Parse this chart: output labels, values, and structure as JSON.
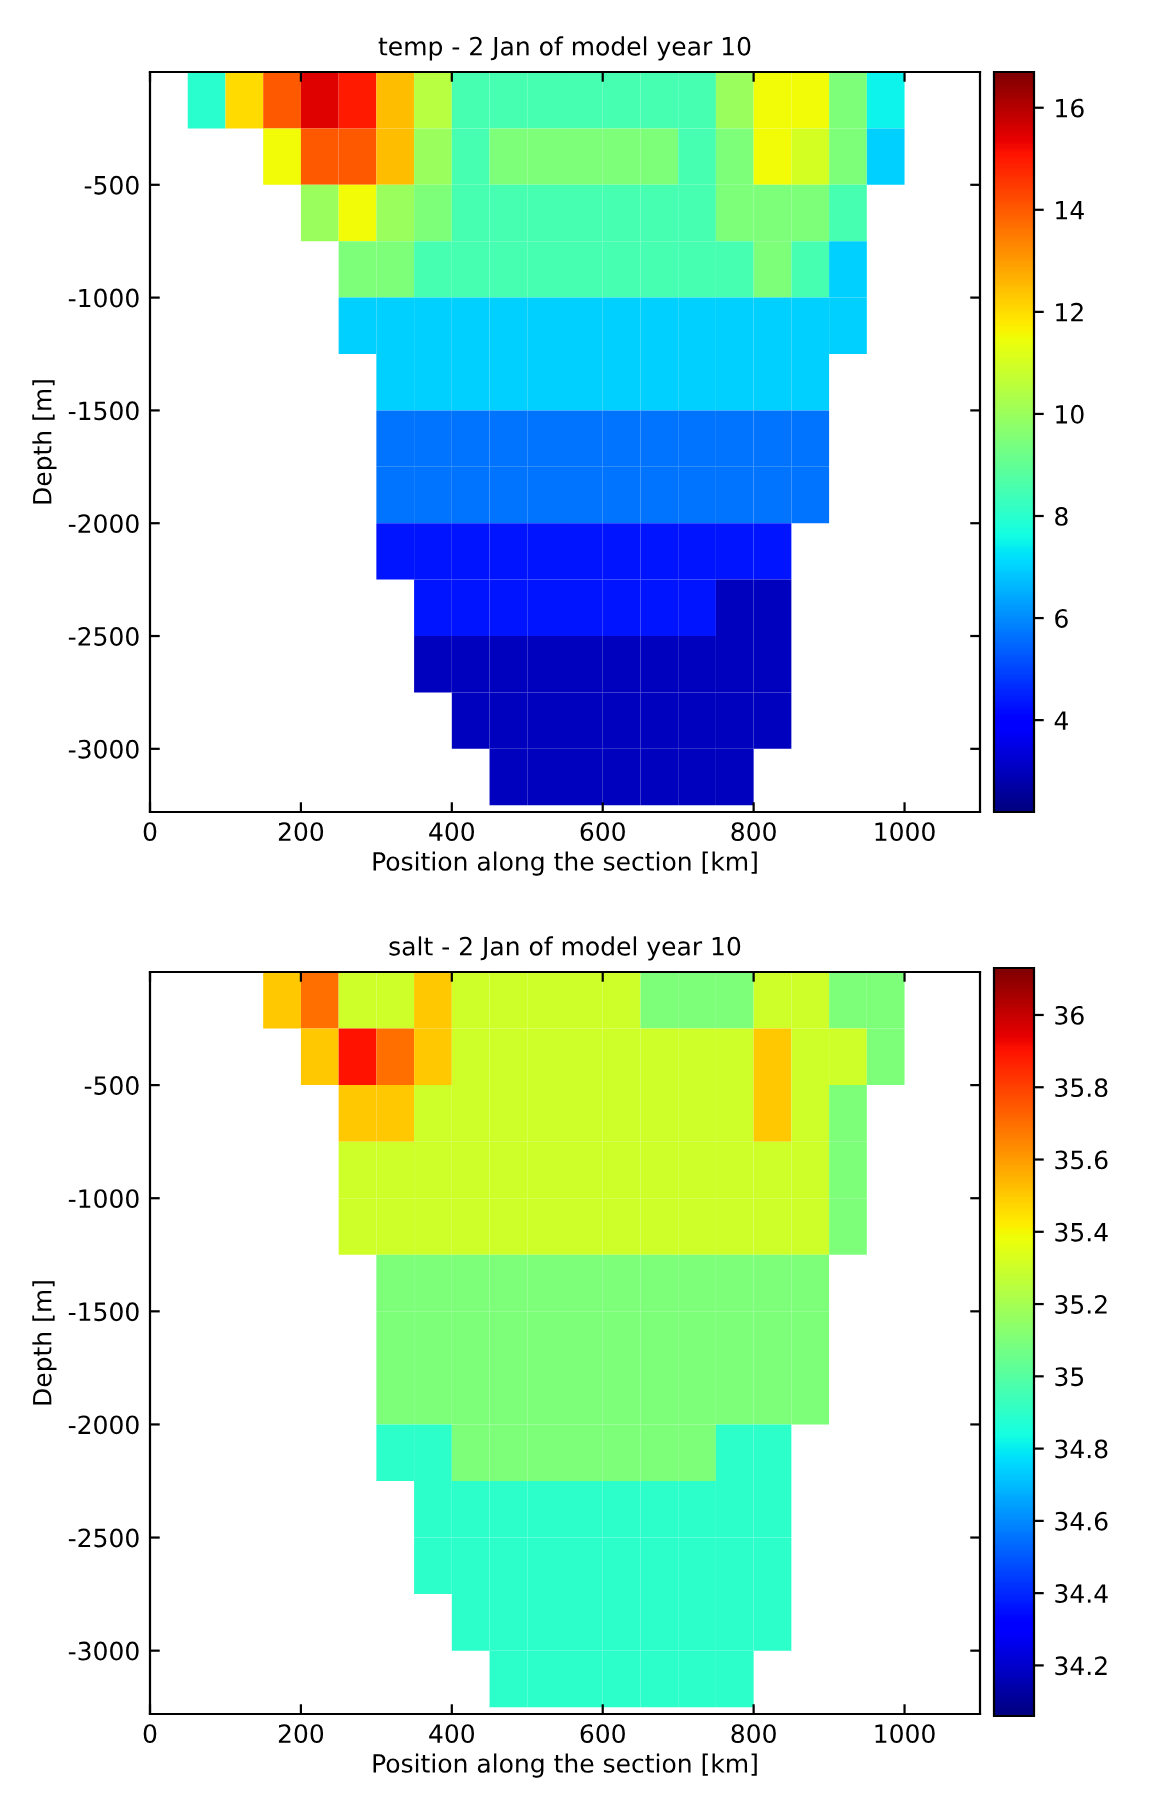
{
  "chart_data": [
    {
      "type": "heatmap",
      "title": "temp - 2 Jan of model year 10",
      "xlabel": "Position along the section [km]",
      "ylabel": "Depth [m]",
      "x": [
        25,
        75,
        125,
        175,
        225,
        275,
        325,
        375,
        425,
        475,
        525,
        575,
        625,
        675,
        725,
        775,
        825,
        875,
        925,
        975,
        1025,
        1075
      ],
      "y": [
        -125,
        -375,
        -625,
        -875,
        -1125,
        -1375,
        -1625,
        -1875,
        -2125,
        -2375,
        -2625,
        -2875,
        -3125
      ],
      "cells": [
        [
          null,
          8,
          12,
          14,
          15.5,
          15,
          12.5,
          10.5,
          8.5,
          8.5,
          8.5,
          8.5,
          8.5,
          8.5,
          8.5,
          10,
          11.5,
          11.5,
          9.5,
          7.5,
          null,
          null
        ],
        [
          null,
          null,
          null,
          11.5,
          14,
          14,
          12.5,
          10,
          8.5,
          9.5,
          9.5,
          9.5,
          9.5,
          9.5,
          8.5,
          9.5,
          11.5,
          11,
          9.5,
          7,
          null,
          null
        ],
        [
          null,
          null,
          null,
          null,
          10,
          11.5,
          10,
          9.5,
          8.5,
          8.5,
          8.5,
          8.5,
          8.5,
          8.5,
          8.5,
          9.5,
          9.5,
          9.5,
          8.5,
          null,
          null,
          null
        ],
        [
          null,
          null,
          null,
          null,
          null,
          9.5,
          9.5,
          8.5,
          8.5,
          8.5,
          8.5,
          8.5,
          8.5,
          8.5,
          8.5,
          8.5,
          9.5,
          8.5,
          7,
          null,
          null,
          null
        ],
        [
          null,
          null,
          null,
          null,
          null,
          7,
          7,
          7,
          7,
          7,
          7,
          7,
          7,
          7,
          7,
          7,
          7,
          7,
          7,
          null,
          null,
          null
        ],
        [
          null,
          null,
          null,
          null,
          null,
          null,
          7,
          7,
          7,
          7,
          7,
          7,
          7,
          7,
          7,
          7,
          7,
          7,
          null,
          null,
          null,
          null
        ],
        [
          null,
          null,
          null,
          null,
          null,
          null,
          5.7,
          5.7,
          5.7,
          5.7,
          5.7,
          5.7,
          5.7,
          5.7,
          5.7,
          5.7,
          5.7,
          5.7,
          null,
          null,
          null,
          null
        ],
        [
          null,
          null,
          null,
          null,
          null,
          null,
          5.7,
          5.7,
          5.7,
          5.7,
          5.7,
          5.7,
          5.7,
          5.7,
          5.7,
          5.7,
          5.7,
          5.7,
          null,
          null,
          null,
          null
        ],
        [
          null,
          null,
          null,
          null,
          null,
          null,
          4.3,
          4.3,
          4.3,
          4.3,
          4.3,
          4.3,
          4.3,
          4.3,
          4.3,
          4.3,
          4.3,
          null,
          null,
          null,
          null,
          null
        ],
        [
          null,
          null,
          null,
          null,
          null,
          null,
          null,
          4.3,
          4.3,
          4.3,
          4.3,
          4.3,
          4.3,
          4.3,
          4.3,
          3,
          3,
          null,
          null,
          null,
          null,
          null
        ],
        [
          null,
          null,
          null,
          null,
          null,
          null,
          null,
          3,
          3,
          3,
          3,
          3,
          3,
          3,
          3,
          3,
          3,
          null,
          null,
          null,
          null,
          null
        ],
        [
          null,
          null,
          null,
          null,
          null,
          null,
          null,
          null,
          3,
          3,
          3,
          3,
          3,
          3,
          3,
          3,
          3,
          null,
          null,
          null,
          null,
          null
        ],
        [
          null,
          null,
          null,
          null,
          null,
          null,
          null,
          null,
          null,
          3,
          3,
          3,
          3,
          3,
          3,
          3,
          null,
          null,
          null,
          null,
          null,
          null
        ]
      ],
      "clim": [
        2.2,
        16.7
      ],
      "cticks": [
        4,
        6,
        8,
        10,
        12,
        14,
        16
      ],
      "xlim": [
        0,
        1100
      ],
      "ylim": [
        -3280,
        0
      ],
      "xticks": [
        0,
        200,
        400,
        600,
        800,
        1000
      ],
      "yticks": [
        -3000,
        -2500,
        -2000,
        -1500,
        -1000,
        -500
      ]
    },
    {
      "type": "heatmap",
      "title": "salt - 2 Jan of model year 10",
      "xlabel": "Position along the section [km]",
      "ylabel": "Depth [m]",
      "x": [
        25,
        75,
        125,
        175,
        225,
        275,
        325,
        375,
        425,
        475,
        525,
        575,
        625,
        675,
        725,
        775,
        825,
        875,
        925,
        975,
        1025,
        1075
      ],
      "y": [
        -125,
        -375,
        -625,
        -875,
        -1125,
        -1375,
        -1625,
        -1875,
        -2125,
        -2375,
        -2625,
        -2875,
        -3125
      ],
      "cells": [
        [
          null,
          null,
          null,
          35.5,
          35.7,
          35.3,
          35.3,
          35.5,
          35.3,
          35.3,
          35.3,
          35.3,
          35.3,
          35.1,
          35.1,
          35.1,
          35.3,
          35.3,
          35.1,
          35.1,
          null,
          null
        ],
        [
          null,
          null,
          null,
          null,
          35.5,
          35.9,
          35.7,
          35.5,
          35.3,
          35.3,
          35.3,
          35.3,
          35.3,
          35.3,
          35.3,
          35.3,
          35.5,
          35.3,
          35.3,
          35.1,
          null,
          null
        ],
        [
          null,
          null,
          null,
          null,
          null,
          35.5,
          35.5,
          35.3,
          35.3,
          35.3,
          35.3,
          35.3,
          35.3,
          35.3,
          35.3,
          35.3,
          35.5,
          35.3,
          35.1,
          null,
          null,
          null
        ],
        [
          null,
          null,
          null,
          null,
          null,
          35.3,
          35.3,
          35.3,
          35.3,
          35.3,
          35.3,
          35.3,
          35.3,
          35.3,
          35.3,
          35.3,
          35.3,
          35.3,
          35.1,
          null,
          null,
          null
        ],
        [
          null,
          null,
          null,
          null,
          null,
          35.3,
          35.3,
          35.3,
          35.3,
          35.3,
          35.3,
          35.3,
          35.3,
          35.3,
          35.3,
          35.3,
          35.3,
          35.3,
          35.1,
          null,
          null,
          null
        ],
        [
          null,
          null,
          null,
          null,
          null,
          null,
          35.1,
          35.1,
          35.1,
          35.1,
          35.1,
          35.1,
          35.1,
          35.1,
          35.1,
          35.1,
          35.1,
          35.1,
          null,
          null,
          null,
          null
        ],
        [
          null,
          null,
          null,
          null,
          null,
          null,
          35.1,
          35.1,
          35.1,
          35.1,
          35.1,
          35.1,
          35.1,
          35.1,
          35.1,
          35.1,
          35.1,
          35.1,
          null,
          null,
          null,
          null
        ],
        [
          null,
          null,
          null,
          null,
          null,
          null,
          35.1,
          35.1,
          35.1,
          35.1,
          35.1,
          35.1,
          35.1,
          35.1,
          35.1,
          35.1,
          35.1,
          35.1,
          null,
          null,
          null,
          null
        ],
        [
          null,
          null,
          null,
          null,
          null,
          null,
          34.9,
          34.9,
          35.1,
          35.1,
          35.1,
          35.1,
          35.1,
          35.1,
          35.1,
          34.9,
          34.9,
          null,
          null,
          null,
          null,
          null
        ],
        [
          null,
          null,
          null,
          null,
          null,
          null,
          null,
          34.9,
          34.9,
          34.9,
          34.9,
          34.9,
          34.9,
          34.9,
          34.9,
          34.9,
          34.9,
          null,
          null,
          null,
          null,
          null
        ],
        [
          null,
          null,
          null,
          null,
          null,
          null,
          null,
          34.9,
          34.9,
          34.9,
          34.9,
          34.9,
          34.9,
          34.9,
          34.9,
          34.9,
          34.9,
          null,
          null,
          null,
          null,
          null
        ],
        [
          null,
          null,
          null,
          null,
          null,
          null,
          null,
          null,
          34.9,
          34.9,
          34.9,
          34.9,
          34.9,
          34.9,
          34.9,
          34.9,
          34.9,
          null,
          null,
          null,
          null,
          null
        ],
        [
          null,
          null,
          null,
          null,
          null,
          null,
          null,
          null,
          null,
          34.9,
          34.9,
          34.9,
          34.9,
          34.9,
          34.9,
          34.9,
          null,
          null,
          null,
          null,
          null,
          null
        ]
      ],
      "clim": [
        34.06,
        36.13
      ],
      "cticks": [
        34.2,
        34.4,
        34.6,
        34.8,
        35,
        35.2,
        35.4,
        35.6,
        35.8,
        36
      ],
      "xlim": [
        0,
        1100
      ],
      "ylim": [
        -3280,
        0
      ],
      "xticks": [
        0,
        200,
        400,
        600,
        800,
        1000
      ],
      "yticks": [
        -3000,
        -2500,
        -2000,
        -1500,
        -1000,
        -500
      ]
    }
  ]
}
